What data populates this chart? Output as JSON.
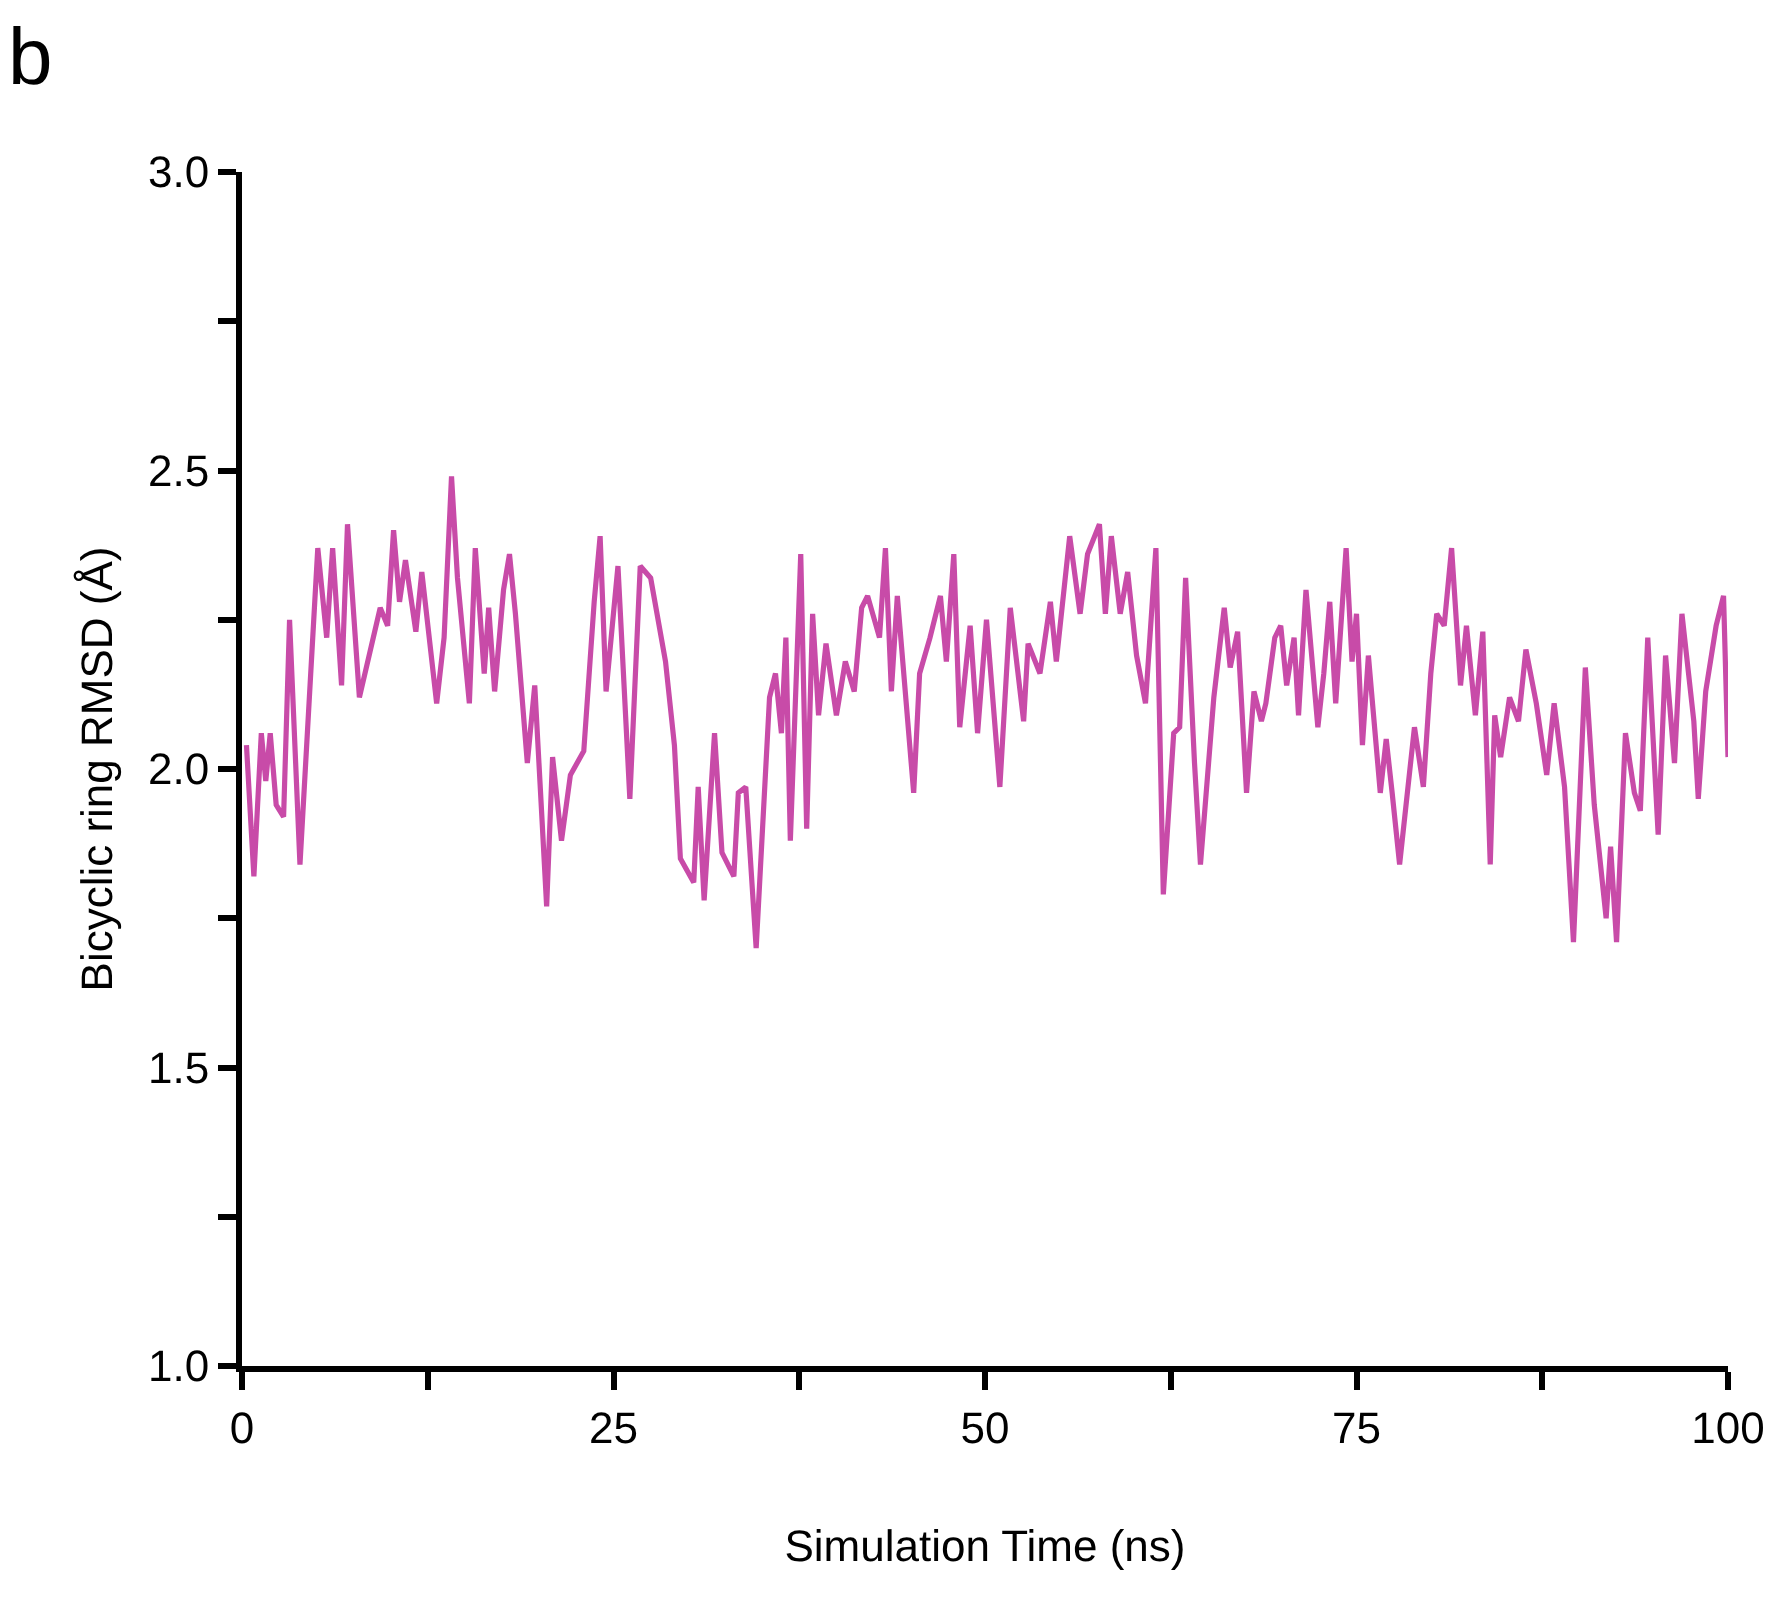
{
  "chart_data": {
    "type": "line",
    "xlabel": "Simulation Time (ns)",
    "ylabel": "Bicyclic ring RMSD (Å)",
    "annotations": [
      "b"
    ],
    "xlim": [
      0,
      100
    ],
    "ylim": [
      1.0,
      3.0
    ],
    "xticks": [
      0,
      {
        "value": 12.5,
        "label": null
      },
      25,
      {
        "value": 37.5,
        "label": null
      },
      50,
      {
        "value": 62.5,
        "label": null
      },
      75,
      {
        "value": 87.5,
        "label": null
      },
      100
    ],
    "yticks": [
      {
        "value": 1.0,
        "label": "1.0"
      },
      {
        "value": 1.25,
        "label": null
      },
      1.5,
      {
        "value": 1.75,
        "label": null
      },
      {
        "value": 2.0,
        "label": "2.0"
      },
      {
        "value": 2.25,
        "label": null
      },
      2.5,
      {
        "value": 2.75,
        "label": null
      },
      {
        "value": 3.0,
        "label": "3.0"
      }
    ],
    "marker": "none",
    "line_style": "solid",
    "series": [
      {
        "color": "#c84ba8",
        "x": [
          0.3,
          0.8,
          1.3,
          1.6,
          1.9,
          2.3,
          2.8,
          3.2,
          3.9,
          5.1,
          5.7,
          6.1,
          6.7,
          7.1,
          7.9,
          9.3,
          9.8,
          10.2,
          10.6,
          11.0,
          11.7,
          12.1,
          13.1,
          13.6,
          14.1,
          14.5,
          15.3,
          15.7,
          16.3,
          16.6,
          17.0,
          17.6,
          18.0,
          18.4,
          19.2,
          19.7,
          20.2,
          20.5,
          20.9,
          21.5,
          22.1,
          23.0,
          23.7,
          24.1,
          24.5,
          25.3,
          26.1,
          26.8,
          27.5,
          28.5,
          29.1,
          29.5,
          30.4,
          30.7,
          31.1,
          31.8,
          32.3,
          33.1,
          33.4,
          33.9,
          34.6,
          35.5,
          35.9,
          36.3,
          36.6,
          36.9,
          37.6,
          38.0,
          38.4,
          38.8,
          39.3,
          40.0,
          40.6,
          41.2,
          41.7,
          42.1,
          42.9,
          43.3,
          43.7,
          44.1,
          45.2,
          45.6,
          46.3,
          47.0,
          47.4,
          47.9,
          48.3,
          49.0,
          49.5,
          50.1,
          51.0,
          51.7,
          52.6,
          52.9,
          53.7,
          54.4,
          54.8,
          55.7,
          56.4,
          56.9,
          57.7,
          58.1,
          58.5,
          59.1,
          59.6,
          60.2,
          60.8,
          61.5,
          62.0,
          62.7,
          63.1,
          63.5,
          64.1,
          64.5,
          65.4,
          66.1,
          66.5,
          67.0,
          67.6,
          68.1,
          68.6,
          68.9,
          69.5,
          69.9,
          70.3,
          70.8,
          71.1,
          71.6,
          72.4,
          72.8,
          73.2,
          73.6,
          74.3,
          74.7,
          75.0,
          75.4,
          75.8,
          76.6,
          77.0,
          77.4,
          77.9,
          78.9,
          79.5,
          80.0,
          80.4,
          80.9,
          81.4,
          82.0,
          82.4,
          83.0,
          83.5,
          84.0,
          84.3,
          84.7,
          85.3,
          85.9,
          86.4,
          87.1,
          87.8,
          88.3,
          89.0,
          89.6,
          90.4,
          91.0,
          91.8,
          92.1,
          92.5,
          93.1,
          93.7,
          94.1,
          94.6,
          95.3,
          95.8,
          96.4,
          96.9,
          97.7,
          98.0,
          98.5,
          99.2,
          99.7,
          100.0
        ],
        "values": [
          2.04,
          1.82,
          2.06,
          1.98,
          2.06,
          1.94,
          1.92,
          2.25,
          1.84,
          2.37,
          2.22,
          2.37,
          2.14,
          2.41,
          2.12,
          2.27,
          2.24,
          2.4,
          2.28,
          2.35,
          2.23,
          2.33,
          2.11,
          2.22,
          2.49,
          2.32,
          2.11,
          2.37,
          2.16,
          2.27,
          2.13,
          2.3,
          2.36,
          2.26,
          2.01,
          2.14,
          1.91,
          1.77,
          2.02,
          1.88,
          1.99,
          2.03,
          2.28,
          2.39,
          2.13,
          2.34,
          1.95,
          2.34,
          2.32,
          2.18,
          2.04,
          1.85,
          1.81,
          1.97,
          1.78,
          2.06,
          1.86,
          1.82,
          1.96,
          1.97,
          1.7,
          2.12,
          2.16,
          2.06,
          2.22,
          1.88,
          2.36,
          1.9,
          2.26,
          2.09,
          2.21,
          2.09,
          2.18,
          2.13,
          2.27,
          2.29,
          2.22,
          2.37,
          2.13,
          2.29,
          1.96,
          2.16,
          2.22,
          2.29,
          2.18,
          2.36,
          2.07,
          2.24,
          2.06,
          2.25,
          1.97,
          2.27,
          2.08,
          2.21,
          2.16,
          2.28,
          2.18,
          2.39,
          2.26,
          2.36,
          2.41,
          2.26,
          2.39,
          2.26,
          2.33,
          2.19,
          2.11,
          2.37,
          1.79,
          2.06,
          2.07,
          2.32,
          2.01,
          1.84,
          2.12,
          2.27,
          2.17,
          2.23,
          1.96,
          2.13,
          2.08,
          2.11,
          2.22,
          2.24,
          2.14,
          2.22,
          2.09,
          2.3,
          2.07,
          2.16,
          2.28,
          2.11,
          2.37,
          2.18,
          2.26,
          2.04,
          2.19,
          1.96,
          2.05,
          1.96,
          1.84,
          2.07,
          1.97,
          2.16,
          2.26,
          2.24,
          2.37,
          2.14,
          2.24,
          2.09,
          2.23,
          1.84,
          2.09,
          2.02,
          2.12,
          2.08,
          2.2,
          2.11,
          1.99,
          2.11,
          1.97,
          1.71,
          2.17,
          1.94,
          1.75,
          1.87,
          1.71,
          2.06,
          1.96,
          1.93,
          2.22,
          1.89,
          2.19,
          2.01,
          2.26,
          2.08,
          1.95,
          2.13,
          2.24,
          2.29,
          2.02
        ]
      }
    ]
  }
}
